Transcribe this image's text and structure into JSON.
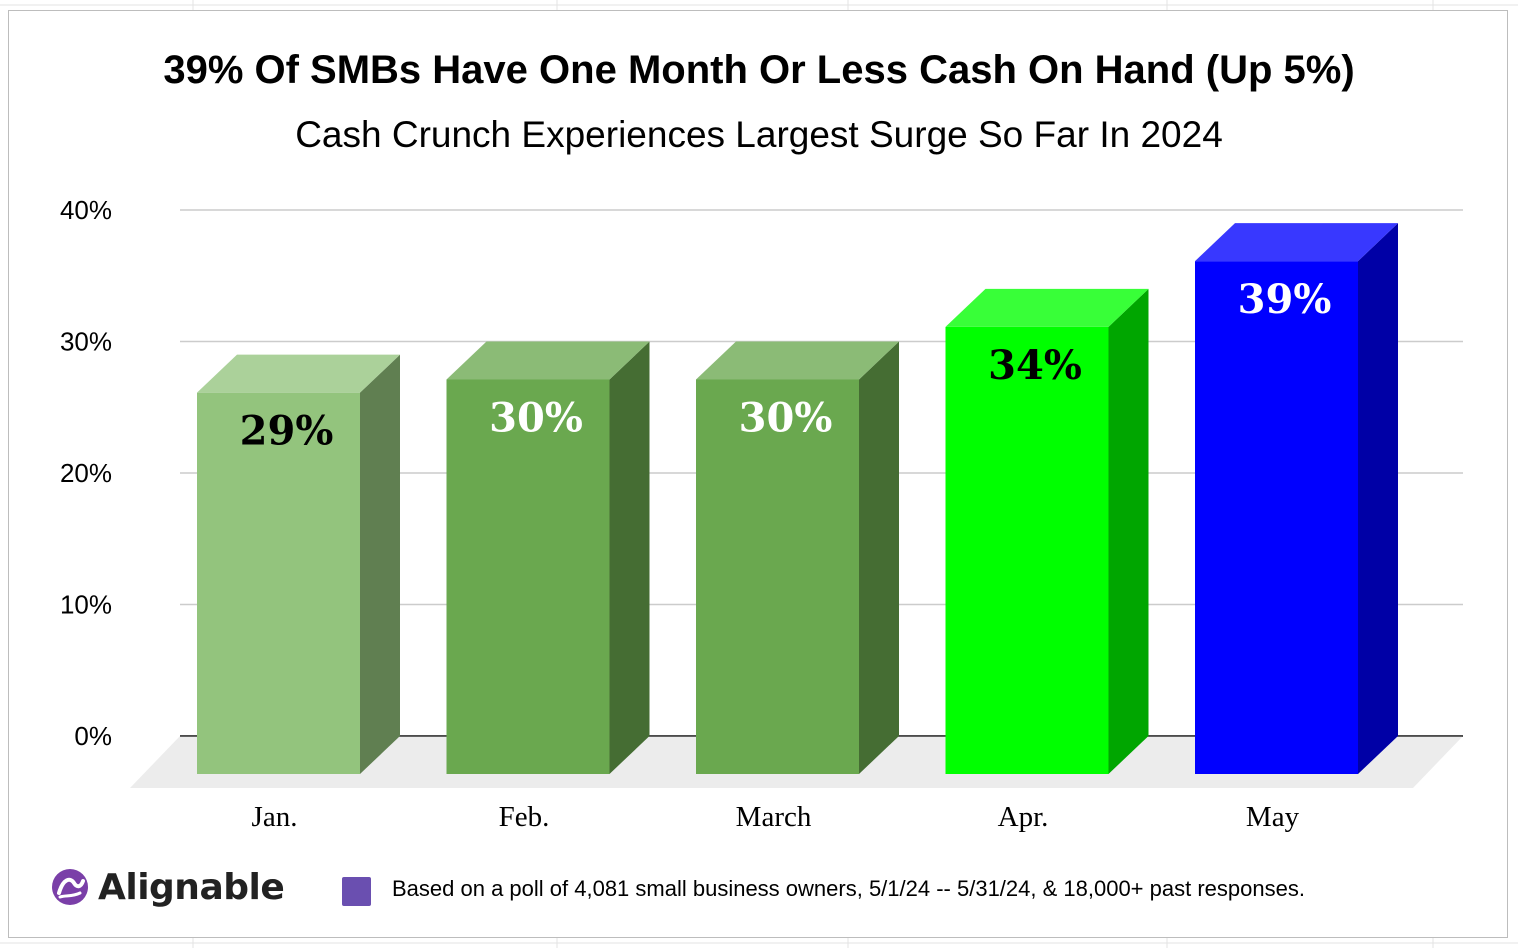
{
  "chart_data": {
    "type": "bar",
    "title": "39% Of SMBs Have One Month Or Less Cash On Hand (Up 5%)",
    "subtitle": "Cash Crunch Experiences Largest Surge So Far In 2024",
    "categories": [
      "Jan.",
      "Feb.",
      "March",
      "Apr.",
      "May"
    ],
    "values": [
      29,
      30,
      30,
      34,
      39
    ],
    "data_labels": [
      "29%",
      "30%",
      "30%",
      "34%",
      "39%"
    ],
    "bar_colors": [
      "#93c47d",
      "#6aa84f",
      "#6aa84f",
      "#00ff00",
      "#0000ff"
    ],
    "label_colors": [
      "#000000",
      "#ffffff",
      "#ffffff",
      "#000000",
      "#ffffff"
    ],
    "ylim": [
      0,
      40
    ],
    "yticks": [
      "0%",
      "10%",
      "20%",
      "30%",
      "40%"
    ],
    "ytick_values": [
      0,
      10,
      20,
      30,
      40
    ],
    "grid": true,
    "style": "3d",
    "xlabel": "",
    "ylabel": ""
  },
  "footer": {
    "note": "Based on a poll of 4,081 small business owners, 5/1/24 -- 5/31/24, & 18,000+ past responses.",
    "swatch_color": "#6a4fb0",
    "brand_name": "Alignable",
    "brand_color": "#7a3fa8"
  }
}
